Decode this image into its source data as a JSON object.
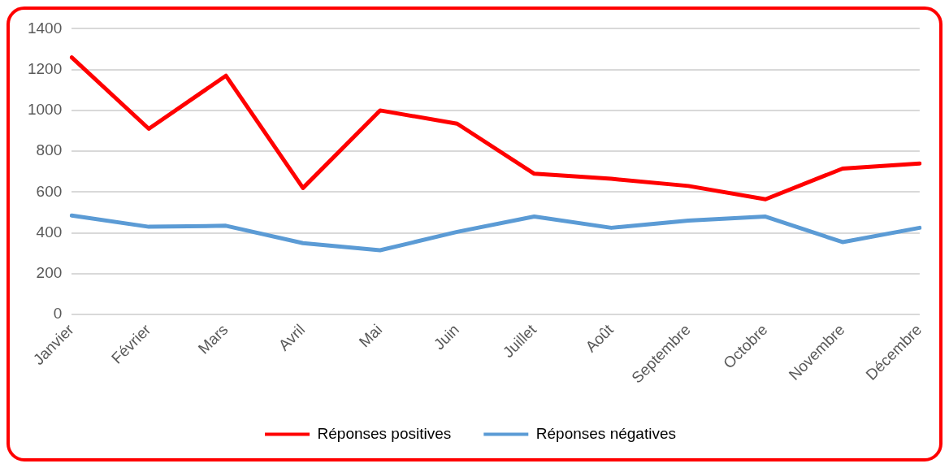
{
  "chart_data": {
    "type": "line",
    "categories": [
      "Janvier",
      "Février",
      "Mars",
      "Avril",
      "Mai",
      "Juin",
      "Juillet",
      "Août",
      "Septembre",
      "Octobre",
      "Novembre",
      "Décembre"
    ],
    "series": [
      {
        "name": "Réponses positives",
        "color": "#ff0000",
        "values": [
          1260,
          910,
          1170,
          620,
          1000,
          935,
          690,
          665,
          630,
          565,
          715,
          740
        ]
      },
      {
        "name": "Réponses négatives",
        "color": "#5b9bd5",
        "values": [
          485,
          430,
          435,
          350,
          315,
          405,
          480,
          425,
          460,
          480,
          355,
          425
        ]
      }
    ],
    "ylim": [
      0,
      1400
    ],
    "yticks": [
      0,
      200,
      400,
      600,
      800,
      1000,
      1200,
      1400
    ],
    "grid": "y",
    "legend": "bottom",
    "marker": "none",
    "line_style": "solid"
  }
}
